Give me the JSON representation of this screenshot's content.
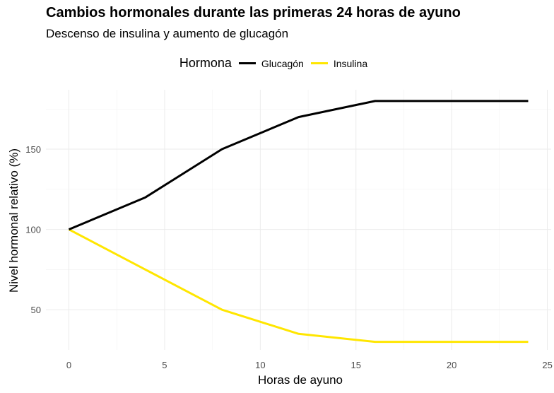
{
  "chart_data": {
    "type": "line",
    "title": "Cambios hormonales durante las primeras 24 horas de ayuno",
    "subtitle": "Descenso de insulina y aumento de glucagón",
    "xlabel": "Horas de ayuno",
    "ylabel": "Nivel hormonal relativo (%)",
    "legend_title": "Hormona",
    "legend_position": "top",
    "grid": true,
    "xlim": [
      -1.2,
      25.2
    ],
    "ylim": [
      25,
      187
    ],
    "x_ticks": [
      0,
      5,
      10,
      15,
      20,
      25
    ],
    "y_ticks": [
      50,
      100,
      150
    ],
    "series": [
      {
        "name": "Glucagón",
        "color": "#000000",
        "x": [
          0,
          4,
          8,
          12,
          16,
          24
        ],
        "values": [
          100,
          120,
          150,
          170,
          180,
          180
        ]
      },
      {
        "name": "Insulina",
        "color": "#FFE600",
        "x": [
          0,
          4,
          8,
          12,
          16,
          24
        ],
        "values": [
          100,
          75,
          50,
          35,
          30,
          30
        ]
      }
    ]
  }
}
